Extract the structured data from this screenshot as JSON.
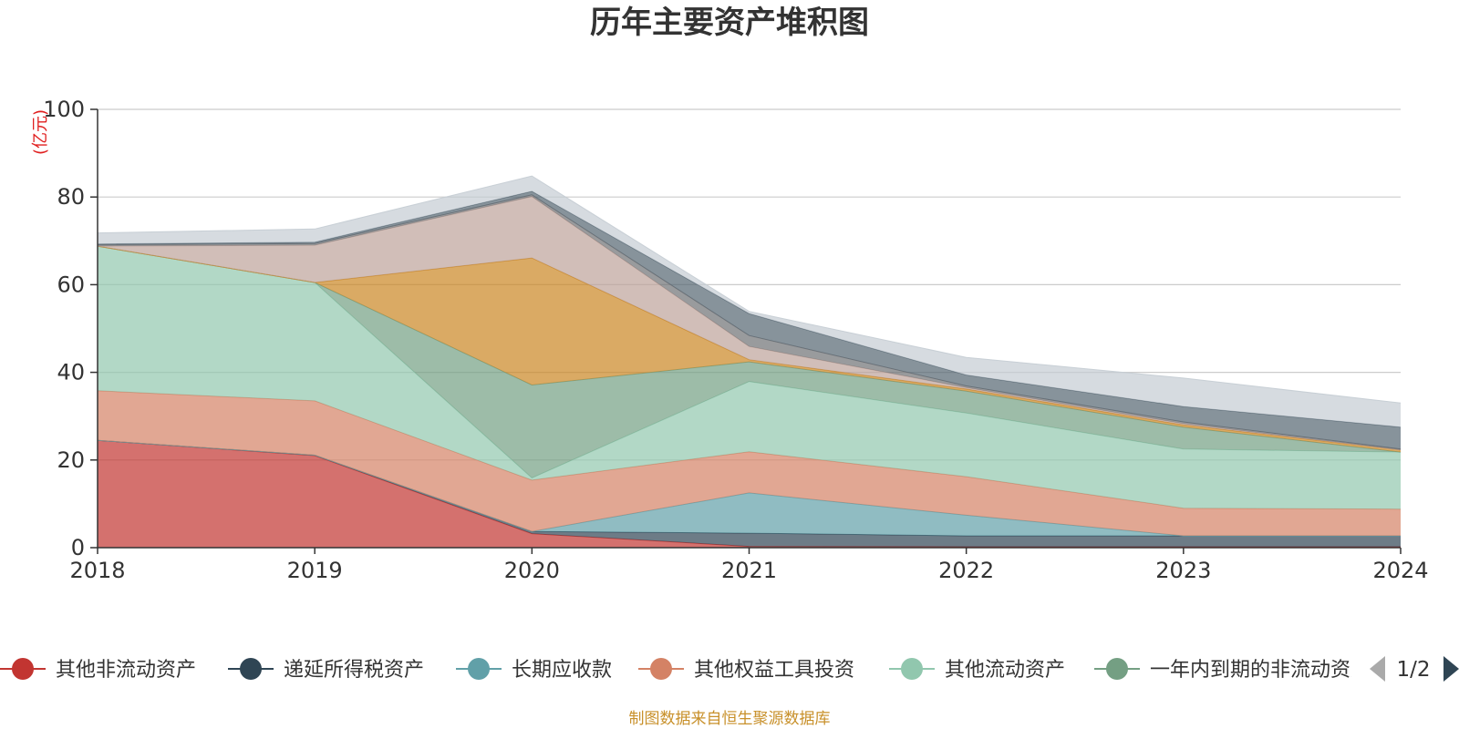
{
  "chart_data": {
    "type": "area",
    "stacked": true,
    "title": "历年主要资产堆积图",
    "ylabel": "(亿元)",
    "xlabel": "",
    "ylim": [
      0,
      100
    ],
    "yticks": [
      0,
      20,
      40,
      60,
      80,
      100
    ],
    "grid": true,
    "legend_position": "bottom",
    "categories": [
      "2018",
      "2019",
      "2020",
      "2021",
      "2022",
      "2023",
      "2024"
    ],
    "series": [
      {
        "name": "其他非流动资产",
        "color": "#c23531",
        "values": [
          24.5,
          21.0,
          3.2,
          0.3,
          0.2,
          0.2,
          0.2
        ]
      },
      {
        "name": "递延所得税资产",
        "color": "#2f4554",
        "values": [
          0.0,
          0.1,
          0.5,
          3.0,
          2.5,
          2.5,
          2.5
        ]
      },
      {
        "name": "长期应收款",
        "color": "#61a0a8",
        "values": [
          0.0,
          0.0,
          0.0,
          9.2,
          4.7,
          0.0,
          0.0
        ]
      },
      {
        "name": "其他权益工具投资",
        "color": "#d48265",
        "values": [
          11.3,
          12.4,
          11.7,
          9.4,
          8.8,
          6.3,
          6.1
        ]
      },
      {
        "name": "其他流动资产",
        "color": "#91c7ae",
        "values": [
          33.0,
          27.0,
          0.5,
          16.0,
          14.5,
          13.5,
          13.0
        ]
      },
      {
        "name": "一年内到期的非流动资产",
        "color": "#749f83",
        "values": [
          0.0,
          0.0,
          21.2,
          4.5,
          5.0,
          5.0,
          0.0
        ]
      },
      {
        "name": "",
        "color": "#ca8622",
        "values": [
          0.0,
          0.0,
          29.0,
          0.5,
          0.5,
          0.5,
          0.5
        ]
      },
      {
        "name": "",
        "color": "#bda29a",
        "values": [
          0.0,
          8.5,
          14.0,
          3.0,
          0.3,
          0.3,
          0.0
        ]
      },
      {
        "name": "",
        "color": "#6e7074",
        "values": [
          0.3,
          0.4,
          0.4,
          2.5,
          0.4,
          0.4,
          0.2
        ]
      },
      {
        "name": "",
        "color": "#546570",
        "values": [
          0.2,
          0.3,
          0.8,
          5.0,
          2.5,
          3.5,
          5.0
        ]
      },
      {
        "name": "",
        "color": "#c4ccd3",
        "values": [
          2.5,
          3.0,
          3.5,
          0.5,
          4.0,
          6.5,
          5.5
        ]
      }
    ]
  },
  "legend": {
    "items": [
      {
        "label": "其他非流动资产",
        "color": "#c23531"
      },
      {
        "label": "递延所得税资产",
        "color": "#2f4554"
      },
      {
        "label": "长期应收款",
        "color": "#61a0a8"
      },
      {
        "label": "其他权益工具投资",
        "color": "#d48265"
      },
      {
        "label": "其他流动资产",
        "color": "#91c7ae"
      },
      {
        "label": "一年内到期的非流动资产",
        "color": "#749f83"
      }
    ],
    "page": "1/2",
    "prev_icon": "triangle-left-icon",
    "next_icon": "triangle-right-icon"
  },
  "source": "制图数据来自恒生聚源数据库"
}
